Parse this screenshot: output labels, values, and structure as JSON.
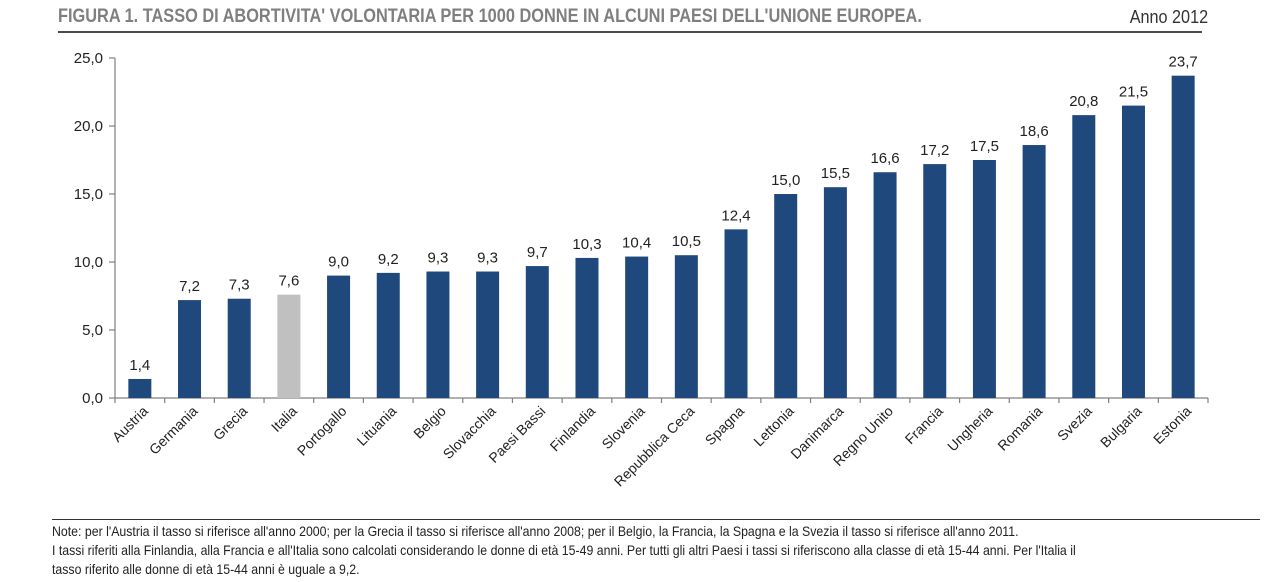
{
  "title": "FIGURA 1. TASSO DI ABORTIVITA' VOLONTARIA PER 1000 DONNE IN ALCUNI PAESI DELL'UNIONE EUROPEA.",
  "year": "Anno 2012",
  "chart_data": {
    "type": "bar",
    "categories": [
      "Austria",
      "Germania",
      "Grecia",
      "Italia",
      "Portogallo",
      "Lituania",
      "Belgio",
      "Slovacchia",
      "Paesi Bassi",
      "Finlandia",
      "Slovenia",
      "Repubblica Ceca",
      "Spagna",
      "Lettonia",
      "Danimarca",
      "Regno Unito",
      "Francia",
      "Ungheria",
      "Romania",
      "Svezia",
      "Bulgaria",
      "Estonia"
    ],
    "values": [
      1.4,
      7.2,
      7.3,
      7.6,
      9.0,
      9.2,
      9.3,
      9.3,
      9.7,
      10.3,
      10.4,
      10.5,
      12.4,
      15.0,
      15.5,
      16.6,
      17.2,
      17.5,
      18.6,
      20.8,
      21.5,
      23.7
    ],
    "value_labels": [
      "1,4",
      "7,2",
      "7,3",
      "7,6",
      "9,0",
      "9,2",
      "9,3",
      "9,3",
      "9,7",
      "10,3",
      "10,4",
      "10,5",
      "12,4",
      "15,0",
      "15,5",
      "16,6",
      "17,2",
      "17,5",
      "18,6",
      "20,8",
      "21,5",
      "23,7"
    ],
    "highlight_category": "Italia",
    "ylim": [
      0,
      25
    ],
    "yticks": [
      0,
      5,
      10,
      15,
      20,
      25
    ],
    "ytick_labels": [
      "0,0",
      "5,0",
      "10,0",
      "15,0",
      "20,0",
      "25,0"
    ],
    "grid": false,
    "legend": "none",
    "colors": {
      "bar": "#1f497d",
      "highlight": "#c0c0c0",
      "axis": "#808080"
    }
  },
  "notes": [
    "Note: per l'Austria il tasso si riferisce all'anno 2000; per la Grecia il tasso si riferisce all'anno 2008; per il Belgio, la Francia, la Spagna e la Svezia il tasso si riferisce all'anno 2011.",
    "I tassi riferiti alla Finlandia, alla Francia e all'Italia sono calcolati considerando le donne di età 15-49 anni. Per tutti gli altri Paesi i tassi si riferiscono alla classe di età 15-44 anni. Per l'Italia il",
    "tasso riferito alle donne di età 15-44 anni è uguale a 9,2."
  ]
}
